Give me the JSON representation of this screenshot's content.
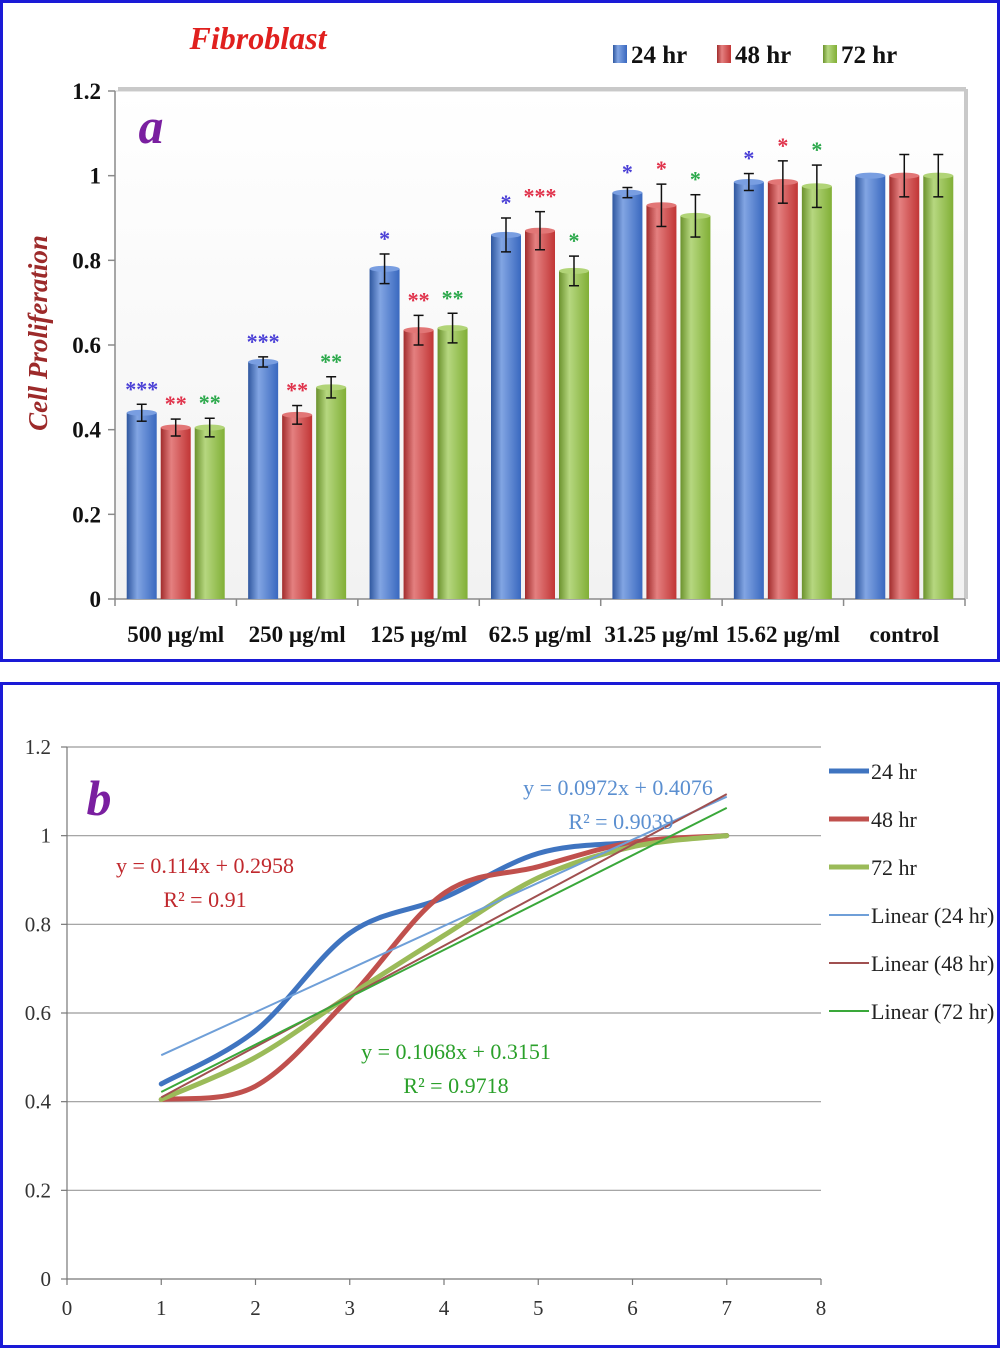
{
  "chart_data": [
    {
      "type": "bar",
      "panel_letter": "a",
      "title": "Fibroblast",
      "ylabel": "Cell Proliferation",
      "xlabel": "",
      "ylim": [
        0,
        1.2
      ],
      "yticks": [
        "0",
        "0.2",
        "0.4",
        "0.6",
        "0.8",
        "1",
        "1.2"
      ],
      "categories": [
        "500 µg/ml",
        "250 µg/ml",
        "125 µg/ml",
        "62.5 µg/ml",
        "31.25 µg/ml",
        "15.62 µg/ml",
        "control"
      ],
      "legend_position": "top-right",
      "series": [
        {
          "name": "24 hr",
          "color": "#3f74d4",
          "values": [
            0.44,
            0.56,
            0.78,
            0.86,
            0.96,
            0.985,
            1.0
          ],
          "errors": [
            0.02,
            0.012,
            0.035,
            0.04,
            0.012,
            0.02,
            0.0
          ],
          "significance": [
            "***",
            "***",
            "*",
            "*",
            "*",
            "*",
            ""
          ],
          "sig_color": "#4a3fd6"
        },
        {
          "name": "48 hr",
          "color": "#d63b3b",
          "values": [
            0.405,
            0.435,
            0.635,
            0.87,
            0.93,
            0.985,
            1.0
          ],
          "errors": [
            0.02,
            0.022,
            0.035,
            0.045,
            0.05,
            0.05,
            0.05
          ],
          "significance": [
            "**",
            "**",
            "**",
            "***",
            "*",
            "*",
            ""
          ],
          "sig_color": "#e0314a"
        },
        {
          "name": "72 hr",
          "color": "#8fc23c",
          "values": [
            0.405,
            0.5,
            0.64,
            0.775,
            0.905,
            0.975,
            1.0
          ],
          "errors": [
            0.022,
            0.025,
            0.035,
            0.035,
            0.05,
            0.05,
            0.05
          ],
          "significance": [
            "**",
            "**",
            "**",
            "*",
            "*",
            "*",
            ""
          ],
          "sig_color": "#2aa84a"
        }
      ]
    },
    {
      "type": "line",
      "panel_letter": "b",
      "xlim": [
        0,
        8
      ],
      "ylim": [
        0,
        1.2
      ],
      "xticks": [
        "0",
        "1",
        "2",
        "3",
        "4",
        "5",
        "6",
        "7",
        "8"
      ],
      "yticks": [
        "0",
        "0.2",
        "0.4",
        "0.6",
        "0.8",
        "1",
        "1.2"
      ],
      "grid": true,
      "legend_position": "right",
      "x": [
        1,
        2,
        3,
        4,
        5,
        6,
        7
      ],
      "series": [
        {
          "name": "24 hr",
          "color": "#3f74c0",
          "values": [
            0.44,
            0.56,
            0.78,
            0.86,
            0.96,
            0.985,
            1.0
          ]
        },
        {
          "name": "48 hr",
          "color": "#c0504d",
          "values": [
            0.405,
            0.435,
            0.635,
            0.87,
            0.93,
            0.985,
            1.0
          ]
        },
        {
          "name": "72 hr",
          "color": "#9bbb59",
          "values": [
            0.405,
            0.5,
            0.64,
            0.775,
            0.905,
            0.975,
            1.0
          ]
        }
      ],
      "trendlines": [
        {
          "name": "Linear (24 hr)",
          "color": "#6f9fd8",
          "slope": 0.0972,
          "intercept": 0.4076,
          "equation": "y = 0.0972x + 0.4076",
          "r2": "R² = 0.9039",
          "label_color": "#5b8fd0"
        },
        {
          "name": "Linear (48 hr)",
          "color": "#a05050",
          "slope": 0.114,
          "intercept": 0.2958,
          "equation": "y = 0.114x + 0.2958",
          "r2": "R² = 0.91",
          "label_color": "#c0282d"
        },
        {
          "name": "Linear (72 hr)",
          "color": "#3aa83a",
          "slope": 0.1068,
          "intercept": 0.3151,
          "equation": "y = 0.1068x + 0.3151",
          "r2": "R² = 0.9718",
          "label_color": "#2aa02a"
        }
      ]
    }
  ]
}
